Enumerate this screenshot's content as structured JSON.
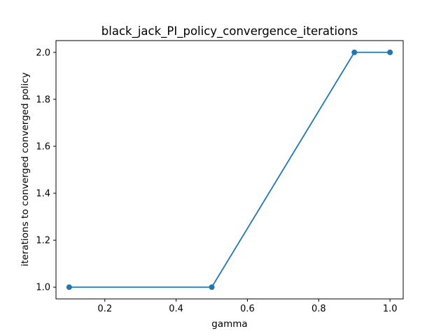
{
  "chart_data": {
    "type": "line",
    "title": "black_jack_PI_policy_convergence_iterations",
    "xlabel": "gamma",
    "ylabel": "iterations to converged converged policy",
    "xlim": [
      0.063,
      1.037
    ],
    "ylim": [
      0.95,
      2.05
    ],
    "x_ticks": [
      0.2,
      0.4,
      0.6,
      0.8,
      1.0
    ],
    "x_tick_labels": [
      "0.2",
      "0.4",
      "0.6",
      "0.8",
      "1.0"
    ],
    "y_ticks": [
      1.0,
      1.2,
      1.4,
      1.6,
      1.8,
      2.0
    ],
    "y_tick_labels": [
      "1.0",
      "1.2",
      "1.4",
      "1.6",
      "1.8",
      "2.0"
    ],
    "grid": false,
    "series": [
      {
        "x": [
          0.1,
          0.5,
          0.9,
          1.0
        ],
        "y": [
          1.0,
          1.0,
          2.0,
          2.0
        ],
        "color": "#1f77b4",
        "marker": "circle"
      }
    ]
  }
}
